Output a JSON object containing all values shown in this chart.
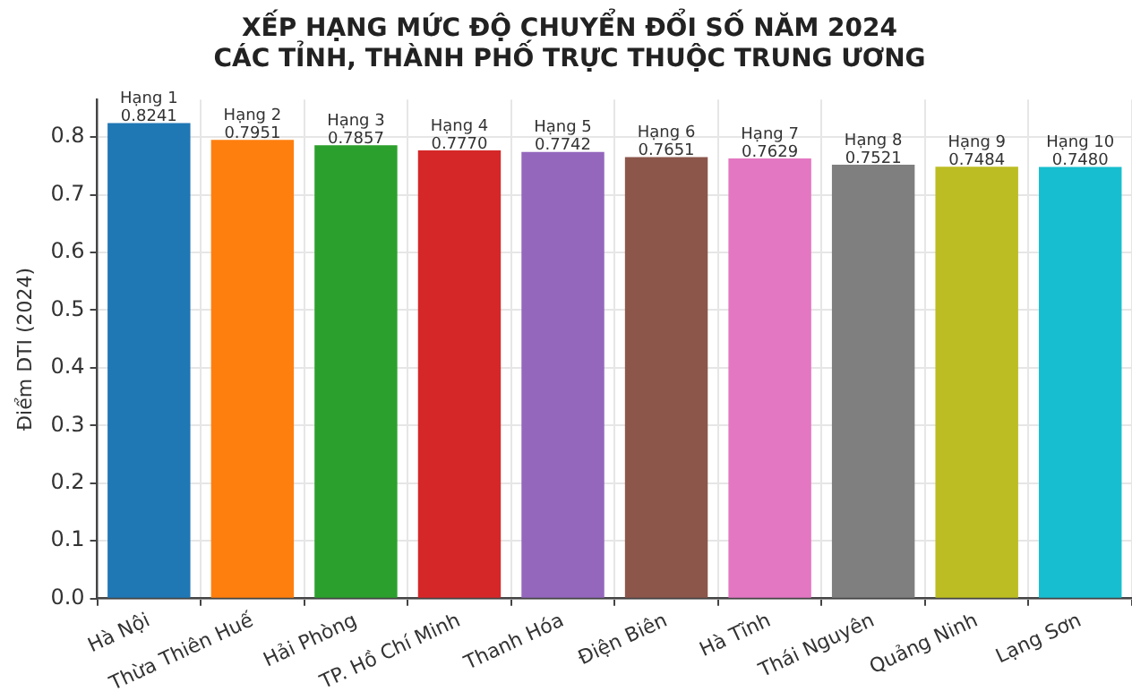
{
  "chart_data": {
    "type": "bar",
    "title": "XẾP HẠNG MỨC ĐỘ CHUYỂN ĐỔI SỐ NĂM 2024\nCÁC TỈNH, THÀNH PHỐ TRỰC THUỘC TRUNG ƯƠNG",
    "ylabel": "Điểm DTI (2024)",
    "categories": [
      "Hà Nội",
      "Thừa Thiên Huế",
      "Hải Phòng",
      "TP. Hồ Chí Minh",
      "Thanh Hóa",
      "Điện Biên",
      "Hà Tĩnh",
      "Thái Nguyên",
      "Quảng Ninh",
      "Lạng Sơn"
    ],
    "values": [
      0.8241,
      0.7951,
      0.7857,
      0.777,
      0.7742,
      0.7651,
      0.7629,
      0.7521,
      0.7484,
      0.748
    ],
    "colors": [
      "#1f77b4",
      "#ff7f0e",
      "#2ca02c",
      "#d62728",
      "#9467bd",
      "#8c564b",
      "#e377c2",
      "#7f7f7f",
      "#bcbd22",
      "#17becf"
    ],
    "value_labels": [
      "Hạng 1\n0.8241",
      "Hạng 2\n0.7951",
      "Hạng 3\n0.7857",
      "Hạng 4\n0.7770",
      "Hạng 5\n0.7742",
      "Hạng 6\n0.7651",
      "Hạng 7\n0.7629",
      "Hạng 8\n0.7521",
      "Hạng 9\n0.7484",
      "Hạng 10\n0.7480"
    ],
    "ylim": [
      0,
      0.865
    ],
    "yticks": [
      {
        "value": 0,
        "label": "0.0"
      },
      0.1,
      0.2,
      0.3,
      0.4,
      0.5,
      0.6,
      0.7,
      0.8
    ],
    "grid": true,
    "legend": false
  }
}
